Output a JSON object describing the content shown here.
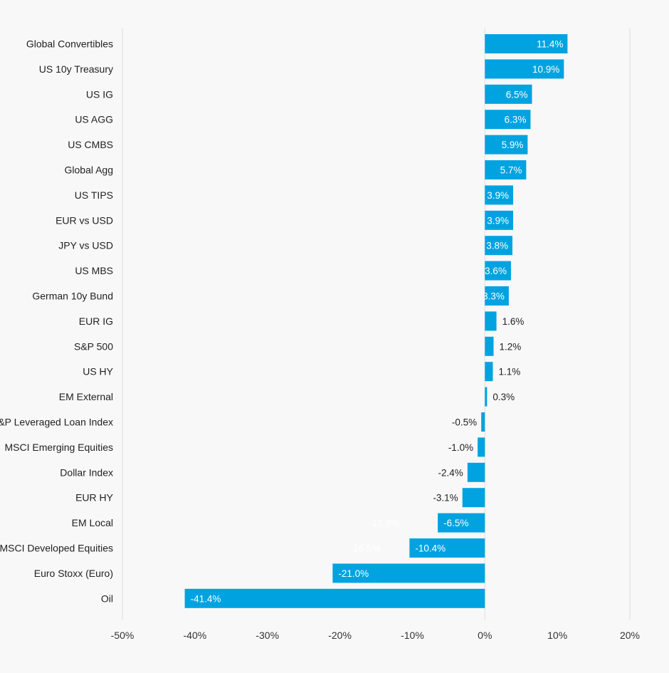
{
  "chart_data": {
    "type": "bar",
    "orientation": "horizontal",
    "title": "",
    "xlabel": "",
    "ylabel": "",
    "xlim": [
      -50,
      20
    ],
    "x_ticks": [
      "-50%",
      "-40%",
      "-30%",
      "-20%",
      "-10%",
      "0%",
      "10%",
      "20%"
    ],
    "x_tick_values": [
      -50,
      -40,
      -30,
      -20,
      -10,
      0,
      10,
      20
    ],
    "categories": [
      "Global Convertibles",
      "US 10y Treasury",
      "US IG",
      "US AGG",
      "US CMBS",
      "Global Agg",
      "US TIPS",
      "EUR vs USD",
      "JPY vs USD",
      "US MBS",
      "German 10y Bund",
      "EUR IG",
      "S&P 500",
      "US HY",
      "EM External",
      "S&P Leveraged Loan Index",
      "MSCI Emerging Equities",
      "Dollar Index",
      "EUR HY",
      "EM Local",
      "MSCI Developed Equities",
      "Euro Stoxx (Euro)",
      "Oil"
    ],
    "values": [
      11.4,
      10.9,
      6.5,
      6.3,
      5.9,
      5.7,
      3.9,
      3.9,
      3.8,
      3.6,
      3.3,
      1.6,
      1.2,
      1.1,
      0.3,
      -0.5,
      -1.0,
      -2.4,
      -3.1,
      -6.5,
      -10.4,
      -21.0,
      -41.4
    ],
    "data_labels": [
      "11.4%",
      "10.9%",
      "6.5%",
      "6.3%",
      "5.9%",
      "5.7%",
      "3.9%",
      "3.9%",
      "3.8%",
      "3.6%",
      "3.3%",
      "1.6%",
      "1.2%",
      "1.1%",
      "0.3%",
      "-0.5%",
      "-1.0%",
      "-2.4%",
      "-3.1%",
      "-6.5%",
      "-10.4%",
      "-21.0%",
      "-41.4%"
    ],
    "ghost_labels": [
      {
        "category": "EM Local",
        "text": "-13.9%",
        "value": -13.9
      },
      {
        "category": "MSCI Developed Equities",
        "text": "-16.5%",
        "value": -16.5
      }
    ],
    "bar_color": "#00a3e0",
    "grid": true
  }
}
